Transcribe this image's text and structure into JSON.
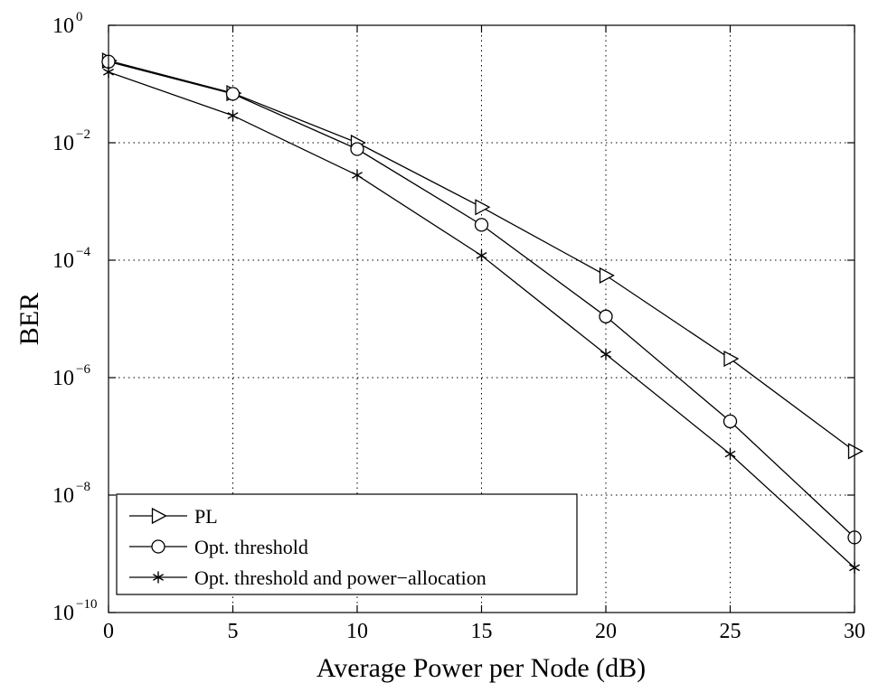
{
  "chart_data": {
    "type": "line",
    "title": "",
    "xlabel": "Average Power per Node (dB)",
    "ylabel": "BER",
    "xlim": [
      0,
      30
    ],
    "ylim": [
      1e-10,
      1
    ],
    "y_scale": "log",
    "grid": true,
    "grid_style": "dotted",
    "legend_position": "bottom-left",
    "x_ticks": [
      0,
      5,
      10,
      15,
      20,
      25,
      30
    ],
    "x_tick_labels": [
      "0",
      "5",
      "10",
      "15",
      "20",
      "25",
      "30"
    ],
    "y_ticks": [
      {
        "base": "10",
        "exp": "0",
        "value": 1
      },
      {
        "base": "10",
        "exp": "−2",
        "value": 0.01
      },
      {
        "base": "10",
        "exp": "−4",
        "value": 0.0001
      },
      {
        "base": "10",
        "exp": "−6",
        "value": 1e-06
      },
      {
        "base": "10",
        "exp": "−8",
        "value": 1e-08
      },
      {
        "base": "10",
        "exp": "−10",
        "value": 1e-10
      }
    ],
    "x": [
      0,
      5,
      10,
      15,
      20,
      25,
      30
    ],
    "series": [
      {
        "name": "PL",
        "marker": "triangle-right",
        "color": "#000000",
        "values": [
          0.25,
          0.07,
          0.01,
          0.0008,
          5.5e-05,
          2.1e-06,
          5.6e-08
        ]
      },
      {
        "name": "Opt. threshold",
        "marker": "circle",
        "color": "#000000",
        "values": [
          0.24,
          0.068,
          0.0078,
          0.0004,
          1.1e-05,
          1.8e-07,
          1.9e-09
        ]
      },
      {
        "name": "Opt. threshold and power−allocation",
        "marker": "asterisk",
        "color": "#000000",
        "values": [
          0.16,
          0.029,
          0.0028,
          0.00012,
          2.5e-06,
          5e-08,
          5.8e-10
        ]
      }
    ]
  }
}
